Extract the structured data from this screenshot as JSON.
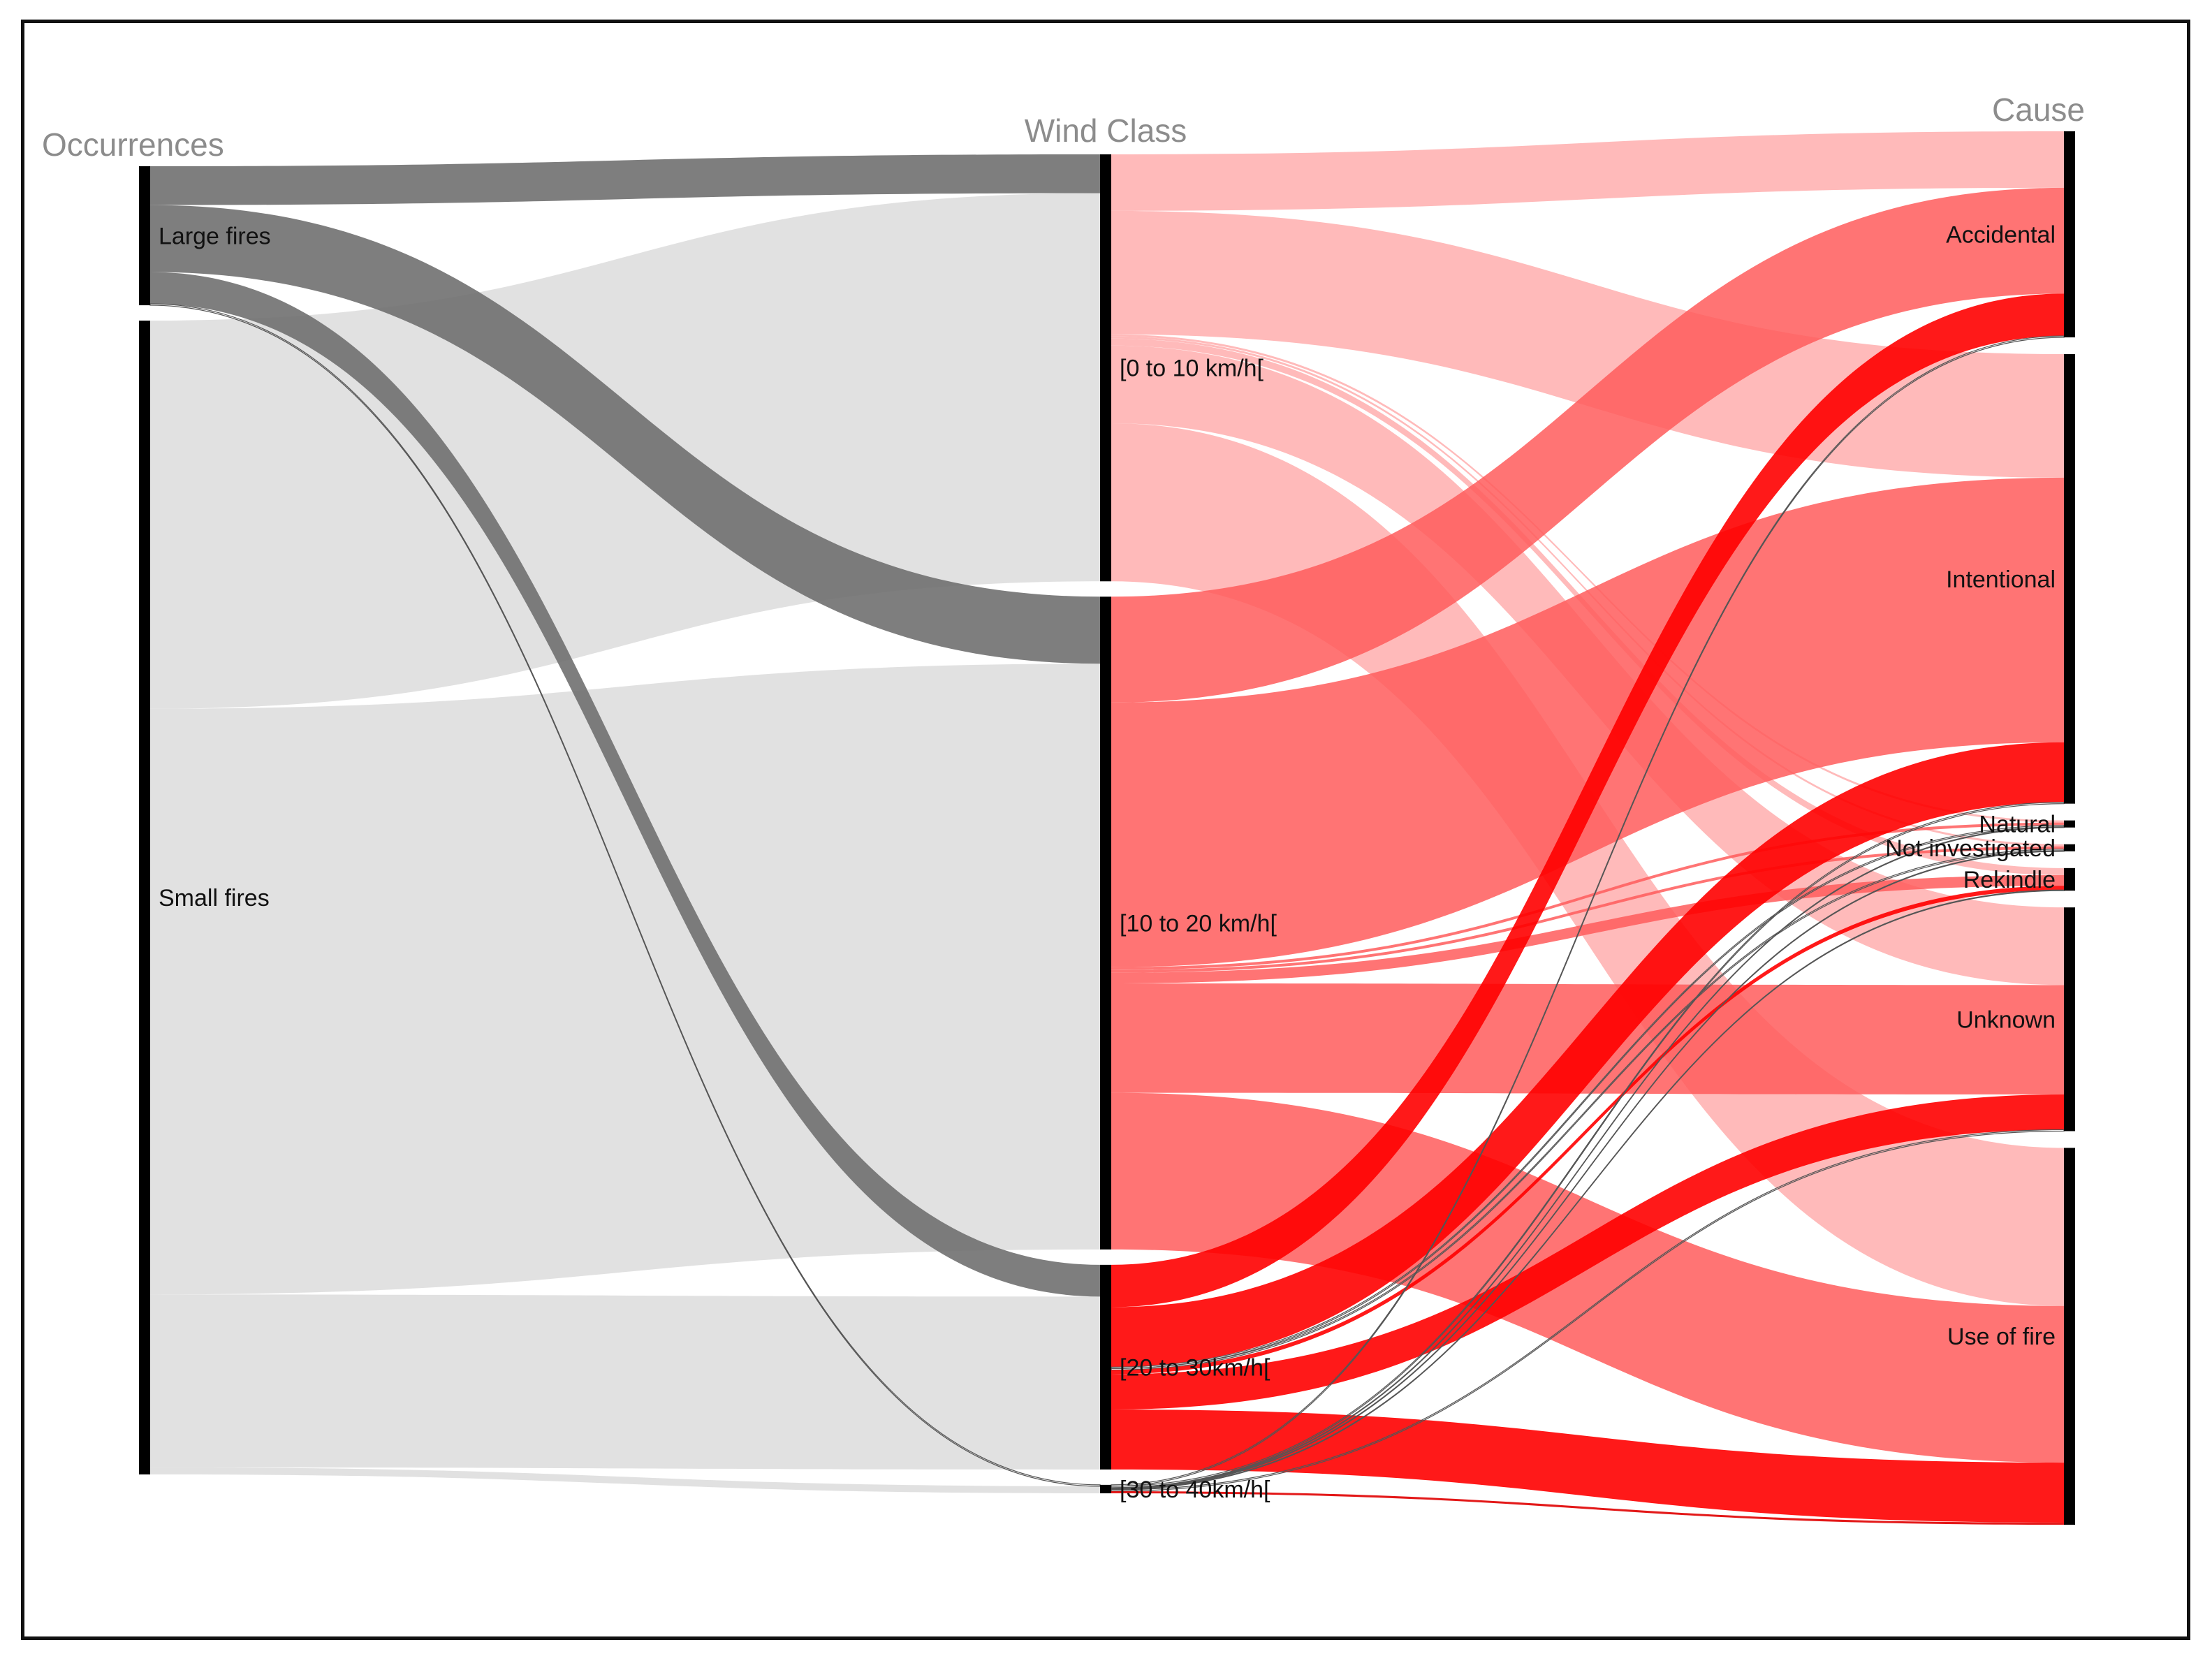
{
  "chart_data": {
    "type": "sankey",
    "columns": [
      {
        "key": "occ",
        "title": "Occurrences",
        "nodes": [
          {
            "id": "large",
            "label": "Large fires"
          },
          {
            "id": "small",
            "label": "Small fires"
          }
        ]
      },
      {
        "key": "wind",
        "title": "Wind Class",
        "nodes": [
          {
            "id": "w0",
            "label": "[0 to 10 km/h["
          },
          {
            "id": "w1",
            "label": "[10 to 20 km/h["
          },
          {
            "id": "w2",
            "label": "[20 to 30km/h["
          },
          {
            "id": "w3",
            "label": "[30 to 40km/h["
          }
        ]
      },
      {
        "key": "cause",
        "title": "Cause",
        "nodes": [
          {
            "id": "acc",
            "label": "Accidental"
          },
          {
            "id": "int",
            "label": "Intentional"
          },
          {
            "id": "nat",
            "label": "Natural"
          },
          {
            "id": "noi",
            "label": "Not investigated"
          },
          {
            "id": "rek",
            "label": "Rekindle"
          },
          {
            "id": "unk",
            "label": "Unknown"
          },
          {
            "id": "use",
            "label": "Use of fire"
          }
        ]
      }
    ],
    "links": [
      {
        "source": "large",
        "target": "w0",
        "value": 55
      },
      {
        "source": "large",
        "target": "w1",
        "value": 95
      },
      {
        "source": "large",
        "target": "w2",
        "value": 45
      },
      {
        "source": "large",
        "target": "w3",
        "value": 2
      },
      {
        "source": "small",
        "target": "w0",
        "value": 550
      },
      {
        "source": "small",
        "target": "w1",
        "value": 830
      },
      {
        "source": "small",
        "target": "w2",
        "value": 245
      },
      {
        "source": "small",
        "target": "w3",
        "value": 10
      },
      {
        "source": "w0",
        "target": "acc",
        "value": 80
      },
      {
        "source": "w0",
        "target": "int",
        "value": 175
      },
      {
        "source": "w0",
        "target": "nat",
        "value": 3
      },
      {
        "source": "w0",
        "target": "noi",
        "value": 3
      },
      {
        "source": "w0",
        "target": "rek",
        "value": 10
      },
      {
        "source": "w0",
        "target": "unk",
        "value": 110
      },
      {
        "source": "w0",
        "target": "use",
        "value": 224
      },
      {
        "source": "w1",
        "target": "acc",
        "value": 150
      },
      {
        "source": "w1",
        "target": "int",
        "value": 375
      },
      {
        "source": "w1",
        "target": "nat",
        "value": 4
      },
      {
        "source": "w1",
        "target": "noi",
        "value": 4
      },
      {
        "source": "w1",
        "target": "rek",
        "value": 15
      },
      {
        "source": "w1",
        "target": "unk",
        "value": 155
      },
      {
        "source": "w1",
        "target": "use",
        "value": 222
      },
      {
        "source": "w2",
        "target": "acc",
        "value": 60
      },
      {
        "source": "w2",
        "target": "int",
        "value": 85
      },
      {
        "source": "w2",
        "target": "nat",
        "value": 2
      },
      {
        "source": "w2",
        "target": "noi",
        "value": 2
      },
      {
        "source": "w2",
        "target": "rek",
        "value": 6
      },
      {
        "source": "w2",
        "target": "unk",
        "value": 50
      },
      {
        "source": "w2",
        "target": "use",
        "value": 85
      },
      {
        "source": "w3",
        "target": "acc",
        "value": 2
      },
      {
        "source": "w3",
        "target": "int",
        "value": 2
      },
      {
        "source": "w3",
        "target": "nat",
        "value": 1
      },
      {
        "source": "w3",
        "target": "noi",
        "value": 1
      },
      {
        "source": "w3",
        "target": "rek",
        "value": 1
      },
      {
        "source": "w3",
        "target": "unk",
        "value": 2
      },
      {
        "source": "w3",
        "target": "use",
        "value": 3
      }
    ],
    "colors": {
      "node": "#000000",
      "title": "#8c8c8c",
      "link_large": "#707070",
      "link_small": "#dedede",
      "link_w0": "#ffb3b3",
      "link_w1": "#ff5c5c",
      "link_w2": "#ff0000",
      "link_w3": "#e00000"
    }
  }
}
